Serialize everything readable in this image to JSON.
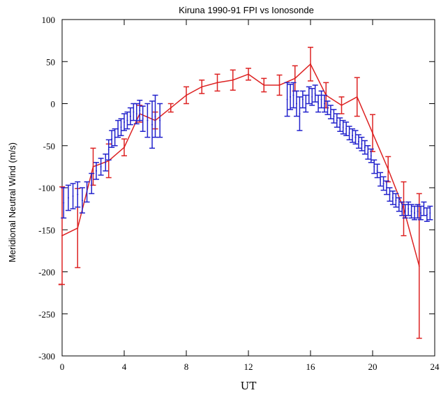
{
  "chart_data": {
    "type": "scatter",
    "title": "Kiruna 1990-91 FPI vs Ionosonde",
    "xlabel": "UT",
    "ylabel": "Meridional Neutral Wind (m/s)",
    "xlim": [
      0,
      24
    ],
    "ylim": [
      -300,
      100
    ],
    "xticks": [
      0,
      4,
      8,
      12,
      16,
      20,
      24
    ],
    "yticks": [
      100,
      50,
      0,
      -50,
      -100,
      -150,
      -200,
      -250,
      -300
    ],
    "grid": false,
    "legend": "none",
    "series": [
      {
        "color": "#dd2222",
        "style": "line-with-errorbars",
        "x": [
          0,
          1,
          2,
          3,
          4,
          5,
          6,
          7,
          8,
          9,
          10,
          11,
          12,
          13,
          14,
          15,
          16,
          17,
          18,
          19,
          20,
          21,
          22,
          23
        ],
        "y": [
          -157,
          -148,
          -75,
          -68,
          -52,
          -12,
          -20,
          -5,
          10,
          20,
          25,
          28,
          35,
          22,
          22,
          30,
          47,
          10,
          -2,
          8,
          -35,
          -78,
          -125,
          -193
        ],
        "err": [
          58,
          47,
          22,
          20,
          10,
          10,
          10,
          5,
          10,
          8,
          10,
          12,
          7,
          8,
          12,
          15,
          20,
          15,
          10,
          23,
          22,
          15,
          32,
          86
        ]
      },
      {
        "color": "#2222cc",
        "style": "errorbars",
        "x": [
          0.1,
          0.4,
          0.7,
          1.0,
          1.3,
          1.6,
          1.9,
          2.2,
          2.5,
          2.8,
          3.0,
          3.2,
          3.4,
          3.6,
          3.8,
          4.0,
          4.2,
          4.4,
          4.6,
          4.8,
          5.0,
          5.2,
          5.5,
          5.8,
          6.0,
          6.3,
          14.5,
          14.7,
          14.9,
          15.1,
          15.3,
          15.5,
          15.7,
          15.9,
          16.1,
          16.3,
          16.5,
          16.7,
          16.9,
          17.1,
          17.3,
          17.5,
          17.7,
          17.9,
          18.1,
          18.3,
          18.5,
          18.7,
          18.9,
          19.1,
          19.3,
          19.5,
          19.7,
          19.9,
          20.1,
          20.3,
          20.5,
          20.7,
          20.9,
          21.1,
          21.3,
          21.5,
          21.7,
          21.9,
          22.1,
          22.3,
          22.5,
          22.7,
          22.9,
          23.1,
          23.3,
          23.5,
          23.7
        ],
        "y": [
          -118,
          -112,
          -110,
          -108,
          -115,
          -105,
          -95,
          -80,
          -75,
          -70,
          -55,
          -42,
          -40,
          -30,
          -28,
          -22,
          -20,
          -15,
          -10,
          -12,
          -8,
          -18,
          -20,
          -25,
          -15,
          -20,
          5,
          8,
          10,
          0,
          -12,
          5,
          0,
          10,
          8,
          12,
          0,
          5,
          0,
          -5,
          -10,
          -15,
          -20,
          -25,
          -28,
          -30,
          -35,
          -38,
          -40,
          -45,
          -48,
          -52,
          -58,
          -62,
          -75,
          -80,
          -90,
          -95,
          -100,
          -108,
          -112,
          -115,
          -120,
          -125,
          -128,
          -125,
          -128,
          -130,
          -128,
          -130,
          -125,
          -132,
          -130
        ],
        "err": [
          18,
          15,
          15,
          15,
          15,
          12,
          12,
          10,
          10,
          10,
          12,
          10,
          10,
          10,
          10,
          10,
          10,
          10,
          10,
          12,
          12,
          15,
          20,
          28,
          25,
          20,
          20,
          15,
          15,
          15,
          20,
          10,
          10,
          10,
          10,
          10,
          10,
          10,
          10,
          8,
          8,
          8,
          8,
          8,
          8,
          8,
          8,
          8,
          8,
          8,
          8,
          8,
          8,
          8,
          8,
          8,
          8,
          8,
          8,
          8,
          8,
          8,
          8,
          8,
          8,
          8,
          8,
          8,
          8,
          8,
          8,
          8,
          8
        ]
      }
    ],
    "annotations": [
      {
        "x": -0.1,
        "y": -215,
        "color": "#dd2222",
        "mark": "tick"
      }
    ]
  }
}
